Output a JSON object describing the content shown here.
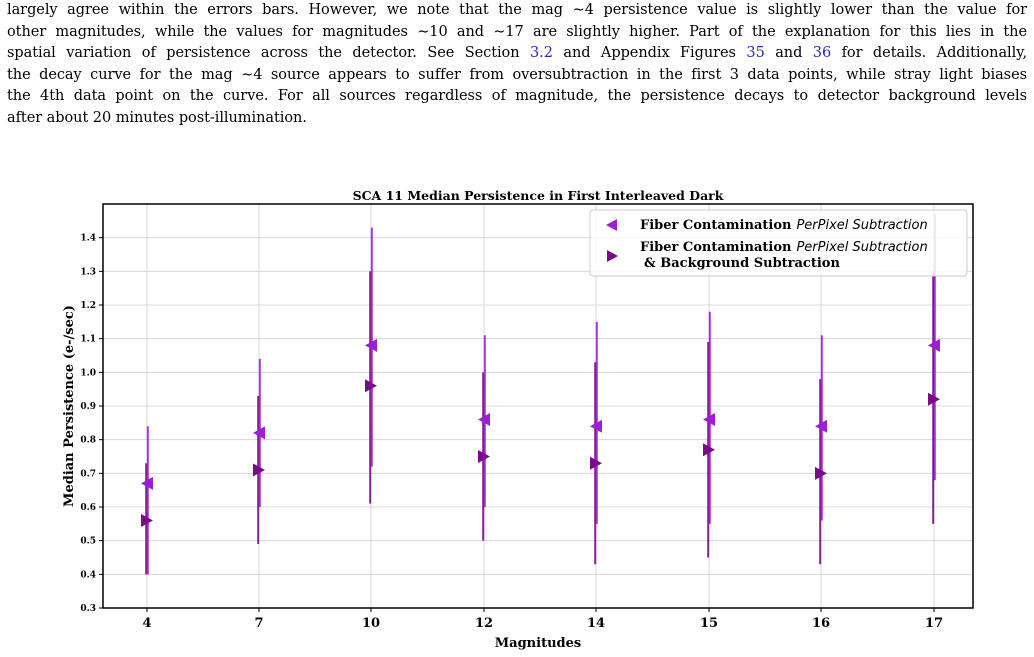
{
  "paragraph": {
    "line1": "largely agree within the errors bars. However, we note that the mag ∼4 persistence value is slightly lower than the value for",
    "line2": "other magnitudes, while the values for magnitudes ∼10 and ∼17 are slightly higher. Part of the explanation for this lies in the",
    "line3_a": "spatial variation of persistence across the detector. See Section ",
    "line3_ref1": "3.2",
    "line3_b": " and Appendix Figures ",
    "line3_ref2": "35",
    "line3_c": " and ",
    "line3_ref3": "36",
    "line3_d": " for details. Additionally,",
    "line4": "the decay curve for the mag ∼4 source appears to suffer from oversubtraction in the first 3 data points, while stray light biases",
    "line5": "the 4th data point on the curve. For all sources regardless of magnitude, the persistence decays to detector background levels",
    "line6": "after about 20 minutes post-illumination."
  },
  "colors": {
    "series1": "#9b1fd6",
    "series2": "#7a0a8a",
    "grid": "#d0d0d0",
    "ref_link": "#2a2ab0"
  },
  "chart_data": {
    "type": "scatter",
    "title": "SCA 11 Median Persistence in First Interleaved Dark",
    "xlabel": "Magnitudes",
    "ylabel": "Median Persistence (e-/sec)",
    "categories": [
      "4",
      "7",
      "10",
      "12",
      "14",
      "15",
      "16",
      "17"
    ],
    "ylim": [
      0.3,
      1.5
    ],
    "yticks": [
      0.3,
      0.4,
      0.5,
      0.6,
      0.7,
      0.8,
      0.9,
      1.0,
      1.1,
      1.2,
      1.3,
      1.4
    ],
    "grid": true,
    "legend_position": "top-right",
    "series": [
      {
        "name_bold": "Fiber Contamination",
        "name_italic": "PerPixel Subtraction",
        "marker": "left-triangle",
        "color": "#9b1fd6",
        "values": [
          0.67,
          0.82,
          1.08,
          0.86,
          0.84,
          0.86,
          0.84,
          1.08
        ],
        "err_low": [
          0.4,
          0.6,
          0.72,
          0.6,
          0.55,
          0.55,
          0.56,
          0.68
        ],
        "err_high": [
          0.84,
          1.04,
          1.43,
          1.11,
          1.15,
          1.18,
          1.11,
          1.47
        ]
      },
      {
        "name_bold": "Fiber Contamination",
        "name_italic": "PerPixel Subtraction",
        "name_line2": "& Background Subtraction",
        "marker": "right-triangle",
        "color": "#7a0a8a",
        "values": [
          0.56,
          0.71,
          0.96,
          0.75,
          0.73,
          0.77,
          0.7,
          0.92
        ],
        "err_low": [
          0.4,
          0.49,
          0.61,
          0.5,
          0.43,
          0.45,
          0.43,
          0.55
        ],
        "err_high": [
          0.73,
          0.93,
          1.3,
          1.0,
          1.03,
          1.09,
          0.98,
          1.3
        ]
      }
    ]
  }
}
